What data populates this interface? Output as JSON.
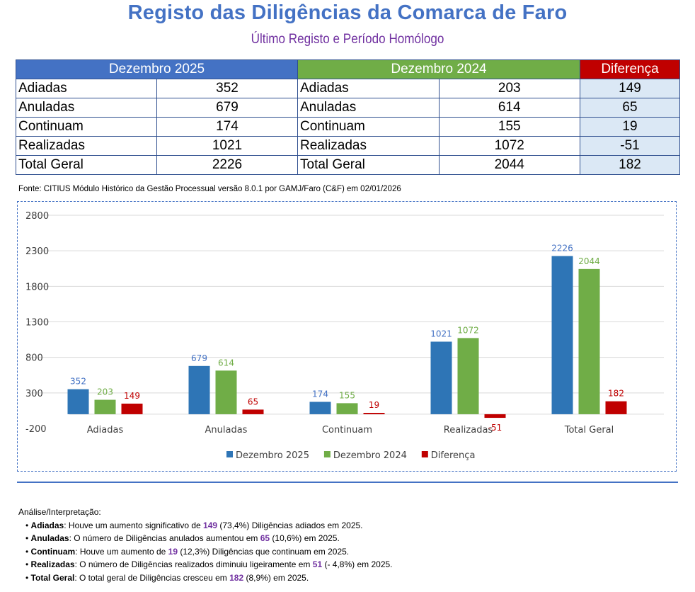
{
  "header": {
    "title": "Registo das Diligências da Comarca de Faro",
    "subtitle": "Último Registo e Período Homólogo"
  },
  "table": {
    "col_2025": "Dezembro 2025",
    "col_2024": "Dezembro 2024",
    "col_diff": "Diferença",
    "color_2025": "#4472c4",
    "color_2024": "#70ad47",
    "color_diff": "#c00000",
    "rows": [
      {
        "label": "Adiadas",
        "v2025": "352",
        "v2024": "203",
        "diff": "149"
      },
      {
        "label": "Anuladas",
        "v2025": "679",
        "v2024": "614",
        "diff": "65"
      },
      {
        "label": "Continuam",
        "v2025": "174",
        "v2024": "155",
        "diff": "19"
      },
      {
        "label": "Realizadas",
        "v2025": "1021",
        "v2024": "1072",
        "diff": "-51"
      },
      {
        "label": "Total Geral",
        "v2025": "2226",
        "v2024": "2044",
        "diff": "182"
      }
    ]
  },
  "source": "Fonte: CITIUS Módulo Histórico da Gestão Processual versão 8.0.1 por GAMJ/Faro (C&F) em 02/01/2026",
  "chart_data": {
    "type": "bar",
    "categories": [
      "Adiadas",
      "Anuladas",
      "Continuam",
      "Realizadas",
      "Total Geral"
    ],
    "series": [
      {
        "name": "Dezembro 2025",
        "color": "#2e75b6",
        "label_color": "#4472c4",
        "values": [
          352,
          679,
          174,
          1021,
          2226
        ]
      },
      {
        "name": "Dezembro 2024",
        "color": "#70ad47",
        "label_color": "#70ad47",
        "values": [
          203,
          614,
          155,
          1072,
          2044
        ]
      },
      {
        "name": "Diferença",
        "color": "#c00000",
        "label_color": "#c00000",
        "values": [
          149,
          65,
          19,
          -51,
          182
        ]
      }
    ],
    "ylim": [
      -200,
      2800
    ],
    "yticks": [
      -200,
      300,
      800,
      1300,
      1800,
      2300,
      2800
    ],
    "grid": true,
    "legend": "bottom"
  },
  "analysis": {
    "heading": "Análise/Interpretação:",
    "items": [
      {
        "bold": "Adiadas",
        "a": ": Houve um aumento significativo de ",
        "num": "149",
        "b": " (73,4%) Diligências adiados em 2025."
      },
      {
        "bold": "Anuladas",
        "a": ": O número de Diligências anulados aumentou em ",
        "num": "65",
        "b": " (10,6%) em 2025."
      },
      {
        "bold": "Continuam",
        "a": ": Houve um aumento de ",
        "num": "19",
        "b": " (12,3%) Diligências que continuam em 2025."
      },
      {
        "bold": "Realizadas",
        "a": ": O número de Diligências realizados diminuiu ligeiramente em ",
        "num": "51",
        "b": " (- 4,8%) em 2025."
      },
      {
        "bold": "Total Geral",
        "a": ": O total geral de Diligências cresceu em ",
        "num": "182",
        "b": " (8,9%) em 2025."
      }
    ]
  }
}
